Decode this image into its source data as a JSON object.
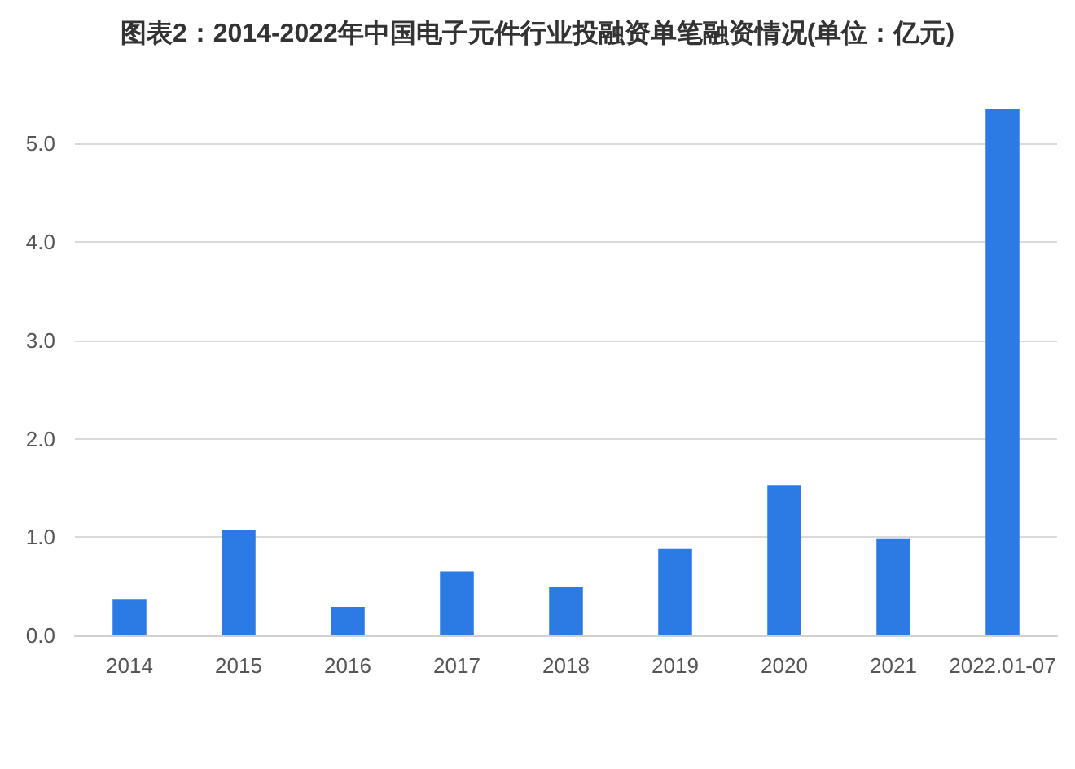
{
  "chart_data": {
    "type": "bar",
    "title": "图表2：2014-2022年中国电子元件行业投融资单笔融资情况(单位：亿元)",
    "categories": [
      "2014",
      "2015",
      "2016",
      "2017",
      "2018",
      "2019",
      "2020",
      "2021",
      "2022.01-07"
    ],
    "values": [
      0.37,
      1.07,
      0.29,
      0.65,
      0.49,
      0.88,
      1.53,
      0.98,
      5.35
    ],
    "color": "#2c7be5",
    "ylim": [
      0,
      5.35
    ],
    "yticks": [
      {
        "value": 0,
        "label": "0.0"
      },
      {
        "value": 1,
        "label": "1.0"
      },
      {
        "value": 2,
        "label": "2.0"
      },
      {
        "value": 3,
        "label": "3.0"
      },
      {
        "value": 4,
        "label": "4.0"
      },
      {
        "value": 5,
        "label": "5.0"
      }
    ],
    "grid": "y"
  }
}
